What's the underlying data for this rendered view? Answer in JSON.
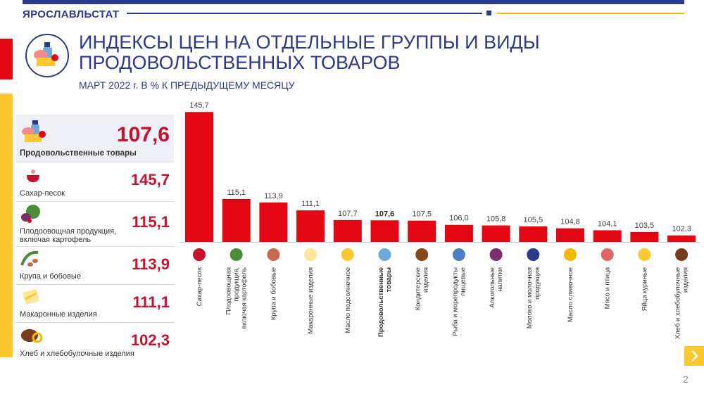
{
  "header": {
    "brand": "ЯРОСЛАВЛЬСТАТ",
    "title_line1": "ИНДЕКСЫ ЦЕН НА ОТДЕЛЬНЫЕ ГРУППЫ И ВИДЫ",
    "title_line2": "ПРОДОВОЛЬСТВЕННЫХ ТОВАРОВ",
    "subtitle": "МАРТ  2022 г. В % К ПРЕДЫДУЩЕМУ  МЕСЯЦУ"
  },
  "colors": {
    "brand_blue": "#2b3a8c",
    "bar_red": "#e30613",
    "value_red": "#c8102e",
    "accent_yellow": "#fcc830"
  },
  "summary": [
    {
      "label": "Продовольственные товары",
      "value": "107,6",
      "icon": "groceries-icon"
    },
    {
      "label": "Сахар-песок",
      "value": "145,7",
      "icon": "sugar-bowl-icon"
    },
    {
      "label": "Плодоовощная продукция,",
      "label2": "включая картофель",
      "value": "115,1",
      "icon": "vegetables-icon"
    },
    {
      "label": "Крупа и бобовые",
      "value": "113,9",
      "icon": "beans-icon"
    },
    {
      "label": "Макаронные  изделия",
      "value": "111,1",
      "icon": "pasta-icon"
    },
    {
      "label": "Хлеб  и хлебобулочные  изделия",
      "value": "102,3",
      "icon": "bread-icon"
    }
  ],
  "chart_data": {
    "type": "bar",
    "title": "ИНДЕКСЫ ЦЕН НА ОТДЕЛЬНЫЕ ГРУППЫ И ВИДЫ ПРОДОВОЛЬСТВЕННЫХ ТОВАРОВ",
    "subtitle": "МАРТ  2022 г. В % К ПРЕДЫДУЩЕМУ  МЕСЯЦУ",
    "categories": [
      "Сахар-песок",
      "Плодоовощная продукция, включая картофель",
      "Крупа и бобовые",
      "Макаронные  изделия",
      "Масло подсолнечное",
      "Продовольственные товары",
      "Кондитерские изделия",
      "Рыба и морепродукты пищевые",
      "Алкогольные напитки",
      "Молоко и молочная продукция",
      "Масло сливочное",
      "Мясо и птица",
      "Яйца куриные",
      "Хлеб  и хлебобулочные изделия"
    ],
    "category_lines": [
      [
        "Сахар-песок"
      ],
      [
        "Плодоовощная",
        "продукция,",
        "включая картофель"
      ],
      [
        "Крупа и бобовые"
      ],
      [
        "Макаронные  изделия"
      ],
      [
        "Масло подсолнечное"
      ],
      [
        "Продовольственные",
        "товары"
      ],
      [
        "Кондитерские",
        "изделия"
      ],
      [
        "Рыба и морепродукты",
        "пищевые"
      ],
      [
        "Алкогольные",
        "напитки"
      ],
      [
        "Молоко и молочная",
        "продукция"
      ],
      [
        "Масло сливочное"
      ],
      [
        "Мясо и птица"
      ],
      [
        "Яйца куриные"
      ],
      [
        "Хлеб  и хлебобулочные",
        "изделия"
      ]
    ],
    "values": [
      145.7,
      115.1,
      113.9,
      111.1,
      107.7,
      107.6,
      107.5,
      106.0,
      105.8,
      105.5,
      104.8,
      104.1,
      103.5,
      102.3
    ],
    "value_labels": [
      "145,7",
      "115,1",
      "113,9",
      "111,1",
      "107,7",
      "107,6",
      "107,5",
      "106,0",
      "105,8",
      "105,5",
      "104,8",
      "104,1",
      "103,5",
      "102,3"
    ],
    "highlight_index": 5,
    "category_icons": [
      "sugar-bowl-icon",
      "vegetables-icon",
      "beans-icon",
      "pasta-icon",
      "sunflower-oil-icon",
      "groceries-icon",
      "cake-icon",
      "fish-icon",
      "wine-bottles-icon",
      "milk-icon",
      "butter-icon",
      "meat-icon",
      "eggs-icon",
      "bread-icon"
    ],
    "ylim": [
      100,
      146
    ],
    "xlabel": "",
    "ylabel": "",
    "grid": false
  },
  "footer": {
    "page": "2"
  }
}
